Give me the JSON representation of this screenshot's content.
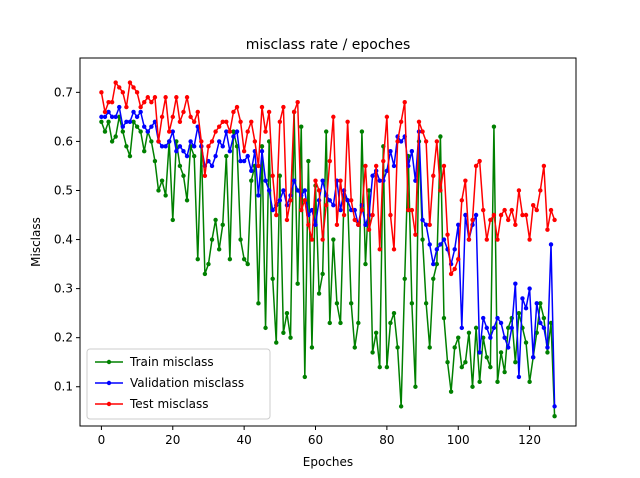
{
  "chart_data": {
    "type": "line",
    "title": "misclass rate / epoches",
    "xlabel": "Epoches",
    "ylabel": "Misclass",
    "xlim": [
      -6,
      133
    ],
    "ylim": [
      0.02,
      0.77
    ],
    "xticks": [
      0,
      20,
      40,
      60,
      80,
      100,
      120
    ],
    "yticks": [
      0.1,
      0.2,
      0.3,
      0.4,
      0.5,
      0.6,
      0.7
    ],
    "grid": false,
    "legend_position": "lower-left",
    "series": [
      {
        "name": "Train misclass",
        "color": "#008000",
        "marker": "circle",
        "values": [
          0.64,
          0.62,
          0.64,
          0.6,
          0.61,
          0.65,
          0.62,
          0.59,
          0.57,
          0.64,
          0.63,
          0.62,
          0.58,
          0.62,
          0.6,
          0.56,
          0.5,
          0.52,
          0.49,
          0.6,
          0.44,
          0.6,
          0.55,
          0.53,
          0.48,
          0.59,
          0.57,
          0.36,
          0.59,
          0.33,
          0.35,
          0.4,
          0.44,
          0.38,
          0.43,
          0.57,
          0.36,
          0.62,
          0.59,
          0.4,
          0.36,
          0.35,
          0.52,
          0.55,
          0.27,
          0.59,
          0.22,
          0.6,
          0.32,
          0.19,
          0.53,
          0.21,
          0.25,
          0.2,
          0.66,
          0.31,
          0.63,
          0.12,
          0.56,
          0.18,
          0.51,
          0.29,
          0.33,
          0.62,
          0.23,
          0.4,
          0.27,
          0.23,
          0.49,
          0.48,
          0.27,
          0.18,
          0.23,
          0.62,
          0.35,
          0.5,
          0.17,
          0.21,
          0.14,
          0.59,
          0.14,
          0.23,
          0.25,
          0.18,
          0.06,
          0.32,
          0.57,
          0.27,
          0.1,
          0.6,
          0.4,
          0.27,
          0.18,
          0.32,
          0.35,
          0.61,
          0.24,
          0.15,
          0.09,
          0.18,
          0.2,
          0.14,
          0.15,
          0.21,
          0.1,
          0.22,
          0.11,
          0.2,
          0.16,
          0.14,
          0.63,
          0.11,
          0.17,
          0.13,
          0.22,
          0.24,
          0.15,
          0.25,
          0.22,
          0.19,
          0.11,
          0.16,
          0.21,
          0.27,
          0.24,
          0.17,
          0.23,
          0.04
        ]
      },
      {
        "name": "Validation misclass",
        "color": "#0000ff",
        "marker": "circle",
        "values": [
          0.65,
          0.65,
          0.66,
          0.65,
          0.65,
          0.67,
          0.63,
          0.64,
          0.64,
          0.66,
          0.65,
          0.66,
          0.63,
          0.62,
          0.63,
          0.64,
          0.6,
          0.59,
          0.59,
          0.6,
          0.62,
          0.58,
          0.59,
          0.58,
          0.57,
          0.6,
          0.59,
          0.63,
          0.59,
          0.55,
          0.56,
          0.55,
          0.57,
          0.6,
          0.59,
          0.62,
          0.58,
          0.61,
          0.62,
          0.56,
          0.56,
          0.57,
          0.54,
          0.58,
          0.49,
          0.58,
          0.52,
          0.5,
          0.46,
          0.47,
          0.48,
          0.5,
          0.47,
          0.49,
          0.52,
          0.5,
          0.49,
          0.5,
          0.45,
          0.46,
          0.43,
          0.48,
          0.52,
          0.49,
          0.48,
          0.47,
          0.52,
          0.46,
          0.5,
          0.48,
          0.46,
          0.46,
          0.43,
          0.47,
          0.43,
          0.45,
          0.53,
          0.54,
          0.52,
          0.52,
          0.54,
          0.58,
          0.55,
          0.61,
          0.6,
          0.61,
          0.55,
          0.58,
          0.52,
          0.62,
          0.44,
          0.43,
          0.39,
          0.35,
          0.38,
          0.39,
          0.4,
          0.38,
          0.35,
          0.38,
          0.43,
          0.22,
          0.45,
          0.4,
          0.43,
          0.45,
          0.17,
          0.24,
          0.22,
          0.2,
          0.22,
          0.24,
          0.23,
          0.2,
          0.18,
          0.22,
          0.31,
          0.12,
          0.28,
          0.26,
          0.3,
          0.16,
          0.27,
          0.23,
          0.22,
          0.18,
          0.39,
          0.06
        ]
      },
      {
        "name": "Test misclass",
        "color": "#ff0000",
        "marker": "circle",
        "values": [
          0.7,
          0.66,
          0.68,
          0.68,
          0.72,
          0.71,
          0.7,
          0.67,
          0.72,
          0.71,
          0.7,
          0.67,
          0.68,
          0.69,
          0.68,
          0.69,
          0.6,
          0.65,
          0.69,
          0.62,
          0.65,
          0.69,
          0.64,
          0.66,
          0.69,
          0.65,
          0.64,
          0.66,
          0.6,
          0.53,
          0.59,
          0.6,
          0.62,
          0.63,
          0.64,
          0.64,
          0.62,
          0.66,
          0.67,
          0.64,
          0.58,
          0.62,
          0.64,
          0.6,
          0.55,
          0.67,
          0.62,
          0.66,
          0.53,
          0.45,
          0.64,
          0.67,
          0.44,
          0.48,
          0.66,
          0.68,
          0.46,
          0.48,
          0.43,
          0.4,
          0.52,
          0.5,
          0.4,
          0.47,
          0.56,
          0.65,
          0.43,
          0.52,
          0.45,
          0.64,
          0.48,
          0.44,
          0.43,
          0.46,
          0.55,
          0.42,
          0.45,
          0.55,
          0.38,
          0.56,
          0.65,
          0.45,
          0.38,
          0.6,
          0.64,
          0.68,
          0.46,
          0.46,
          0.41,
          0.64,
          0.62,
          0.6,
          0.43,
          0.53,
          0.6,
          0.5,
          0.55,
          0.41,
          0.33,
          0.34,
          0.36,
          0.48,
          0.52,
          0.4,
          0.44,
          0.55,
          0.56,
          0.46,
          0.4,
          0.44,
          0.45,
          0.4,
          0.45,
          0.46,
          0.44,
          0.46,
          0.43,
          0.5,
          0.45,
          0.45,
          0.4,
          0.47,
          0.46,
          0.5,
          0.55,
          0.42,
          0.46,
          0.44
        ]
      }
    ]
  }
}
